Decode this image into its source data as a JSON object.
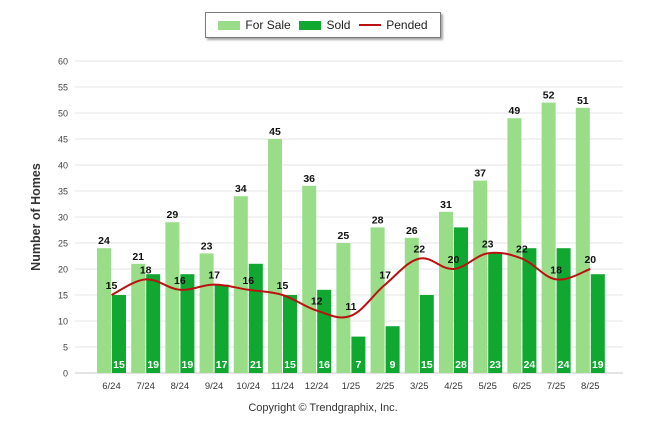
{
  "legend": {
    "for_sale": "For Sale",
    "sold": "Sold",
    "pended": "Pended"
  },
  "copyright": "Copyright © Trendgraphix, Inc.",
  "colors": {
    "for_sale": "#99dd88",
    "sold": "#11a832",
    "pended": "#bb1111",
    "grid": "#e6e6e6"
  },
  "chart_data": {
    "type": "bar",
    "categories": [
      "6/24",
      "7/24",
      "8/24",
      "9/24",
      "10/24",
      "11/24",
      "12/24",
      "1/25",
      "2/25",
      "3/25",
      "4/25",
      "5/25",
      "6/25",
      "7/25",
      "8/25"
    ],
    "series": [
      {
        "name": "For Sale",
        "type": "bar",
        "values": [
          24,
          21,
          29,
          23,
          34,
          45,
          36,
          25,
          28,
          26,
          31,
          37,
          49,
          52,
          51
        ]
      },
      {
        "name": "Sold",
        "type": "bar",
        "values": [
          15,
          19,
          19,
          17,
          21,
          15,
          16,
          7,
          9,
          15,
          28,
          23,
          24,
          24,
          19
        ]
      },
      {
        "name": "Pended",
        "type": "line",
        "values": [
          15,
          18,
          16,
          17,
          16,
          15,
          12,
          11,
          17,
          22,
          20,
          23,
          22,
          18,
          20
        ]
      }
    ],
    "ylabel": "Number of Homes",
    "xlabel": "",
    "ylim": [
      0,
      60
    ],
    "yticks": [
      0,
      5,
      10,
      15,
      20,
      25,
      30,
      35,
      40,
      45,
      50,
      55,
      60
    ],
    "grid": true,
    "legend_position": "top-center"
  }
}
